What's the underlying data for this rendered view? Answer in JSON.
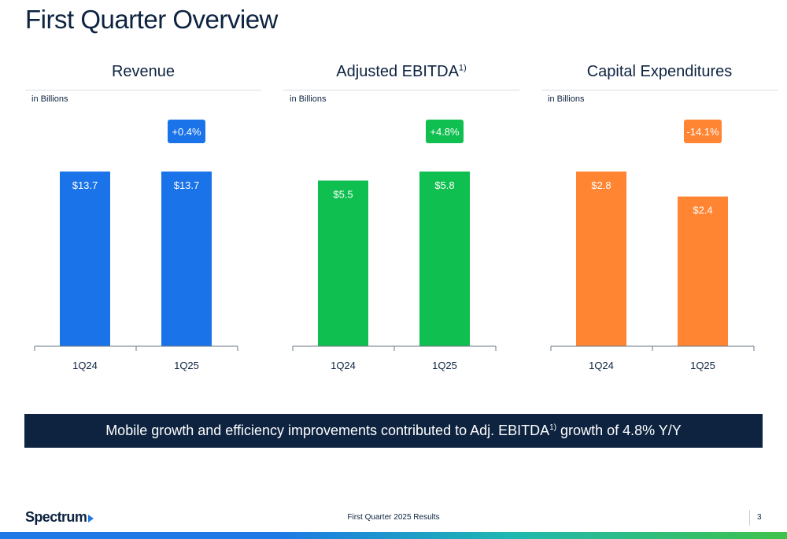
{
  "page": {
    "title": "First Quarter Overview",
    "banner": {
      "text_before": "Mobile growth and efficiency improvements contributed to Adj. EBITDA",
      "footnote": "1)",
      "text_after": " growth of 4.8% Y/Y"
    },
    "footer": {
      "logo": "Spectrum",
      "text": "First Quarter 2025 Results",
      "page_number": "3"
    }
  },
  "chart_data": [
    {
      "type": "bar",
      "title": "Revenue",
      "title_footnote": "",
      "unit_label": "in Billions",
      "categories": [
        "1Q24",
        "1Q25"
      ],
      "values": [
        13.7,
        13.7
      ],
      "value_labels": [
        "$13.7",
        "$13.7"
      ],
      "change_label": "+0.4%",
      "color": "#1a73e8",
      "ymax": 13.7
    },
    {
      "type": "bar",
      "title": "Adjusted EBITDA",
      "title_footnote": "1)",
      "unit_label": "in Billions",
      "categories": [
        "1Q24",
        "1Q25"
      ],
      "values": [
        5.5,
        5.8
      ],
      "value_labels": [
        "$5.5",
        "$5.8"
      ],
      "change_label": "+4.8%",
      "color": "#0fbf4f",
      "ymax": 5.8
    },
    {
      "type": "bar",
      "title": "Capital Expenditures",
      "title_footnote": "",
      "unit_label": "in Billions",
      "categories": [
        "1Q24",
        "1Q25"
      ],
      "values": [
        2.8,
        2.4
      ],
      "value_labels": [
        "$2.8",
        "$2.4"
      ],
      "change_label": "-14.1%",
      "color": "#ff8533",
      "ymax": 2.8
    }
  ]
}
